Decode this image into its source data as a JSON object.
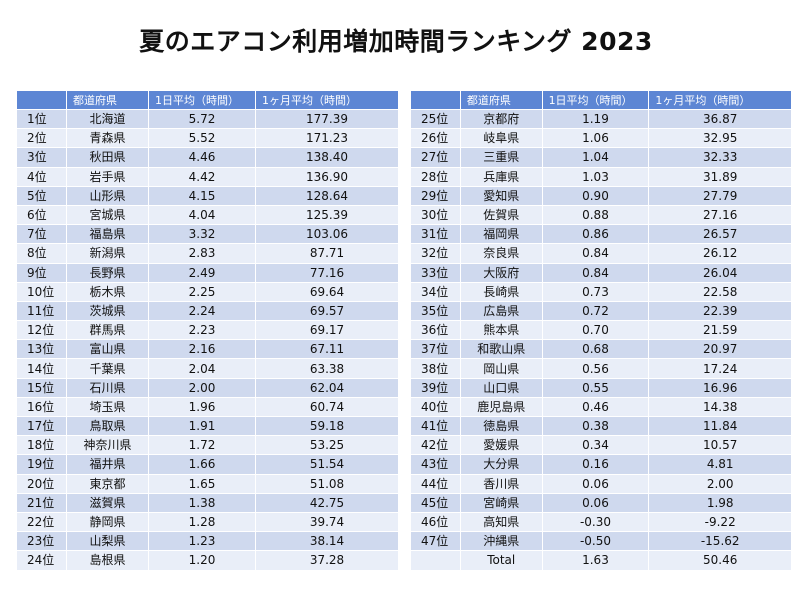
{
  "title": "夏のエアコン利用増加時間ランキング  2023",
  "chart_data": {
    "type": "table",
    "title": "夏のエアコン利用増加時間ランキング  2023",
    "columns": [
      "",
      "都道府県",
      "1日平均（時間）",
      "1ヶ月平均（時間）"
    ],
    "rows": [
      [
        "1位",
        "北海道",
        "5.72",
        "177.39"
      ],
      [
        "2位",
        "青森県",
        "5.52",
        "171.23"
      ],
      [
        "3位",
        "秋田県",
        "4.46",
        "138.40"
      ],
      [
        "4位",
        "岩手県",
        "4.42",
        "136.90"
      ],
      [
        "5位",
        "山形県",
        "4.15",
        "128.64"
      ],
      [
        "6位",
        "宮城県",
        "4.04",
        "125.39"
      ],
      [
        "7位",
        "福島県",
        "3.32",
        "103.06"
      ],
      [
        "8位",
        "新潟県",
        "2.83",
        "87.71"
      ],
      [
        "9位",
        "長野県",
        "2.49",
        "77.16"
      ],
      [
        "10位",
        "栃木県",
        "2.25",
        "69.64"
      ],
      [
        "11位",
        "茨城県",
        "2.24",
        "69.57"
      ],
      [
        "12位",
        "群馬県",
        "2.23",
        "69.17"
      ],
      [
        "13位",
        "富山県",
        "2.16",
        "67.11"
      ],
      [
        "14位",
        "千葉県",
        "2.04",
        "63.38"
      ],
      [
        "15位",
        "石川県",
        "2.00",
        "62.04"
      ],
      [
        "16位",
        "埼玉県",
        "1.96",
        "60.74"
      ],
      [
        "17位",
        "鳥取県",
        "1.91",
        "59.18"
      ],
      [
        "18位",
        "神奈川県",
        "1.72",
        "53.25"
      ],
      [
        "19位",
        "福井県",
        "1.66",
        "51.54"
      ],
      [
        "20位",
        "東京都",
        "1.65",
        "51.08"
      ],
      [
        "21位",
        "滋賀県",
        "1.38",
        "42.75"
      ],
      [
        "22位",
        "静岡県",
        "1.28",
        "39.74"
      ],
      [
        "23位",
        "山梨県",
        "1.23",
        "38.14"
      ],
      [
        "24位",
        "島根県",
        "1.20",
        "37.28"
      ],
      [
        "25位",
        "京都府",
        "1.19",
        "36.87"
      ],
      [
        "26位",
        "岐阜県",
        "1.06",
        "32.95"
      ],
      [
        "27位",
        "三重県",
        "1.04",
        "32.33"
      ],
      [
        "28位",
        "兵庫県",
        "1.03",
        "31.89"
      ],
      [
        "29位",
        "愛知県",
        "0.90",
        "27.79"
      ],
      [
        "30位",
        "佐賀県",
        "0.88",
        "27.16"
      ],
      [
        "31位",
        "福岡県",
        "0.86",
        "26.57"
      ],
      [
        "32位",
        "奈良県",
        "0.84",
        "26.12"
      ],
      [
        "33位",
        "大阪府",
        "0.84",
        "26.04"
      ],
      [
        "34位",
        "長崎県",
        "0.73",
        "22.58"
      ],
      [
        "35位",
        "広島県",
        "0.72",
        "22.39"
      ],
      [
        "36位",
        "熊本県",
        "0.70",
        "21.59"
      ],
      [
        "37位",
        "和歌山県",
        "0.68",
        "20.97"
      ],
      [
        "38位",
        "岡山県",
        "0.56",
        "17.24"
      ],
      [
        "39位",
        "山口県",
        "0.55",
        "16.96"
      ],
      [
        "40位",
        "鹿児島県",
        "0.46",
        "14.38"
      ],
      [
        "41位",
        "徳島県",
        "0.38",
        "11.84"
      ],
      [
        "42位",
        "愛媛県",
        "0.34",
        "10.57"
      ],
      [
        "43位",
        "大分県",
        "0.16",
        "4.81"
      ],
      [
        "44位",
        "香川県",
        "0.06",
        "2.00"
      ],
      [
        "45位",
        "宮崎県",
        "0.06",
        "1.98"
      ],
      [
        "46位",
        "高知県",
        "-0.30",
        "-9.22"
      ],
      [
        "47位",
        "沖縄県",
        "-0.50",
        "-15.62"
      ],
      [
        "",
        "Total",
        "1.63",
        "50.46"
      ]
    ]
  },
  "colors": {
    "header_bg": "#5d86d4",
    "row_odd": "#cfd9ee",
    "row_even": "#e9eef8"
  }
}
